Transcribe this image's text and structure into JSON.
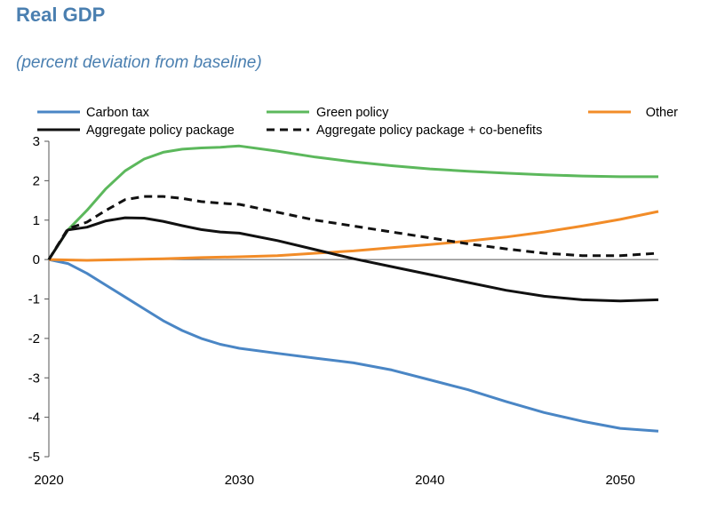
{
  "header": {
    "title": "Real GDP",
    "subtitle": "(percent deviation from baseline)"
  },
  "chart_data": {
    "type": "line",
    "title": "Real GDP",
    "subtitle": "(percent deviation from baseline)",
    "xlabel": "",
    "ylabel": "",
    "xlim": [
      2020,
      2052
    ],
    "ylim": [
      -5,
      3
    ],
    "x_ticks": [
      2020,
      2030,
      2040,
      2050
    ],
    "y_ticks": [
      3,
      2,
      1,
      0,
      -1,
      -2,
      -3,
      -4,
      -5
    ],
    "legend_position": "top",
    "series": [
      {
        "name": "Carbon tax",
        "color": "#4a86c5",
        "dash": "solid",
        "x": [
          2020,
          2021,
          2022,
          2023,
          2024,
          2025,
          2026,
          2027,
          2028,
          2029,
          2030,
          2032,
          2034,
          2036,
          2038,
          2040,
          2042,
          2044,
          2046,
          2048,
          2050,
          2052
        ],
        "y": [
          0,
          -0.1,
          -0.35,
          -0.65,
          -0.95,
          -1.25,
          -1.55,
          -1.8,
          -2.0,
          -2.15,
          -2.25,
          -2.38,
          -2.5,
          -2.62,
          -2.8,
          -3.05,
          -3.3,
          -3.6,
          -3.88,
          -4.1,
          -4.28,
          -4.35
        ]
      },
      {
        "name": "Green policy",
        "color": "#5cb85c",
        "dash": "solid",
        "x": [
          2020,
          2021,
          2022,
          2023,
          2024,
          2025,
          2026,
          2027,
          2028,
          2029,
          2030,
          2032,
          2034,
          2036,
          2038,
          2040,
          2042,
          2044,
          2046,
          2048,
          2050,
          2052
        ],
        "y": [
          0,
          0.75,
          1.25,
          1.8,
          2.25,
          2.55,
          2.72,
          2.8,
          2.83,
          2.85,
          2.88,
          2.75,
          2.6,
          2.48,
          2.38,
          2.3,
          2.24,
          2.19,
          2.15,
          2.12,
          2.1,
          2.1
        ]
      },
      {
        "name": "Other",
        "color": "#f28c28",
        "dash": "solid",
        "x": [
          2020,
          2022,
          2024,
          2026,
          2028,
          2030,
          2032,
          2034,
          2036,
          2038,
          2040,
          2042,
          2044,
          2046,
          2048,
          2050,
          2052
        ],
        "y": [
          0,
          -0.02,
          0,
          0.02,
          0.05,
          0.07,
          0.1,
          0.16,
          0.22,
          0.3,
          0.38,
          0.47,
          0.57,
          0.7,
          0.85,
          1.02,
          1.22
        ]
      },
      {
        "name": "Aggregate policy package",
        "color": "#111111",
        "dash": "solid",
        "x": [
          2020,
          2021,
          2022,
          2023,
          2024,
          2025,
          2026,
          2027,
          2028,
          2029,
          2030,
          2032,
          2034,
          2036,
          2038,
          2040,
          2042,
          2044,
          2046,
          2048,
          2050,
          2052
        ],
        "y": [
          0,
          0.75,
          0.82,
          0.98,
          1.06,
          1.05,
          0.97,
          0.86,
          0.76,
          0.7,
          0.67,
          0.48,
          0.25,
          0.02,
          -0.18,
          -0.38,
          -0.58,
          -0.78,
          -0.93,
          -1.02,
          -1.05,
          -1.02
        ]
      },
      {
        "name": "Aggregate policy package + co-benefits",
        "color": "#111111",
        "dash": "dashed",
        "x": [
          2020,
          2021,
          2022,
          2023,
          2024,
          2025,
          2026,
          2027,
          2028,
          2029,
          2030,
          2032,
          2034,
          2036,
          2038,
          2040,
          2042,
          2044,
          2046,
          2048,
          2050,
          2052
        ],
        "y": [
          0,
          0.78,
          0.95,
          1.25,
          1.52,
          1.6,
          1.6,
          1.55,
          1.47,
          1.43,
          1.4,
          1.2,
          1.0,
          0.85,
          0.7,
          0.55,
          0.4,
          0.27,
          0.16,
          0.1,
          0.1,
          0.16
        ]
      }
    ]
  }
}
